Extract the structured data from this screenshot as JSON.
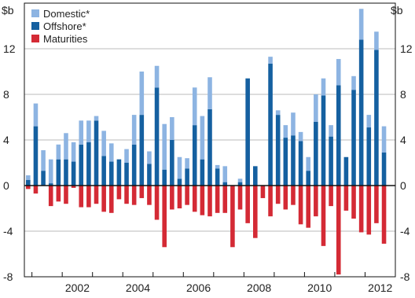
{
  "chart_data": {
    "type": "bar",
    "stacked": true,
    "unit_left": "$b",
    "unit_right": "$b",
    "ylim": [
      -8,
      16
    ],
    "yticks": [
      -8,
      -4,
      0,
      4,
      8,
      12
    ],
    "x_range": [
      2000.75,
      2012.75
    ],
    "xticks": [
      2002,
      2004,
      2006,
      2008,
      2010,
      2012
    ],
    "grid": true,
    "legend_position": "top-left",
    "colors": {
      "domestic": "#8db4e2",
      "offshore": "#1560a0",
      "maturities": "#d42a35"
    },
    "x": [
      2000.75,
      2001.0,
      2001.25,
      2001.5,
      2001.75,
      2002.0,
      2002.25,
      2002.5,
      2002.75,
      2003.0,
      2003.25,
      2003.5,
      2003.75,
      2004.0,
      2004.25,
      2004.5,
      2004.75,
      2005.0,
      2005.25,
      2005.5,
      2005.75,
      2006.0,
      2006.25,
      2006.5,
      2006.75,
      2007.0,
      2007.25,
      2007.5,
      2007.75,
      2008.0,
      2008.25,
      2008.5,
      2008.75,
      2009.0,
      2009.25,
      2009.5,
      2009.75,
      2010.0,
      2010.25,
      2010.5,
      2010.75,
      2011.0,
      2011.25,
      2011.5,
      2011.75,
      2012.0,
      2012.25,
      2012.5,
      2012.75
    ],
    "series": [
      {
        "name": "Offshore*",
        "key": "offshore",
        "values": [
          0.5,
          5.2,
          1.3,
          0.2,
          2.3,
          2.3,
          2.1,
          3.6,
          3.8,
          5.7,
          2.6,
          2.1,
          2.3,
          2.0,
          3.6,
          6.2,
          1.9,
          8.6,
          1.4,
          4.0,
          0.6,
          1.5,
          5.3,
          2.3,
          6.7,
          1.5,
          0.3,
          0.0,
          0.3,
          9.4,
          1.7,
          0.0,
          10.7,
          6.2,
          4.2,
          4.4,
          3.9,
          1.3,
          5.6,
          7.9,
          4.3,
          8.8,
          2.5,
          8.4,
          12.8,
          5.1,
          11.9,
          2.9,
          0.0
        ]
      },
      {
        "name": "Domestic*",
        "key": "domestic",
        "values": [
          0.4,
          2.0,
          1.8,
          2.1,
          1.3,
          2.3,
          1.7,
          2.1,
          1.9,
          0.4,
          2.2,
          1.6,
          0.0,
          1.2,
          2.6,
          3.8,
          1.1,
          1.9,
          4.0,
          2.0,
          1.9,
          0.9,
          3.3,
          3.8,
          2.8,
          0.3,
          1.4,
          0.0,
          0.3,
          0.0,
          0.0,
          0.0,
          0.6,
          0.4,
          1.1,
          2.0,
          0.8,
          1.2,
          2.4,
          1.5,
          1.0,
          2.3,
          0.0,
          1.2,
          2.7,
          1.1,
          1.6,
          2.3,
          0.0
        ]
      },
      {
        "name": "Maturities",
        "key": "maturities",
        "values": [
          -0.3,
          -0.7,
          0.0,
          -1.8,
          -1.4,
          -1.6,
          -0.2,
          -1.9,
          -1.9,
          -1.6,
          -2.3,
          -2.4,
          -1.2,
          -1.6,
          -1.7,
          -1.1,
          -1.7,
          -3.0,
          -5.4,
          -2.1,
          -2.0,
          -1.7,
          -2.3,
          -2.6,
          -2.7,
          -2.4,
          -2.4,
          -5.4,
          -2.1,
          -3.3,
          -4.6,
          -1.1,
          -2.7,
          -1.6,
          -2.1,
          -1.7,
          -3.4,
          -3.7,
          -2.7,
          -5.3,
          -1.8,
          -7.8,
          -2.2,
          -2.9,
          -4.1,
          -4.3,
          -3.3,
          -5.1,
          0.0
        ]
      }
    ],
    "legend": [
      {
        "key": "domestic",
        "label": "Domestic*"
      },
      {
        "key": "offshore",
        "label": "Offshore*"
      },
      {
        "key": "maturities",
        "label": "Maturities"
      }
    ]
  }
}
